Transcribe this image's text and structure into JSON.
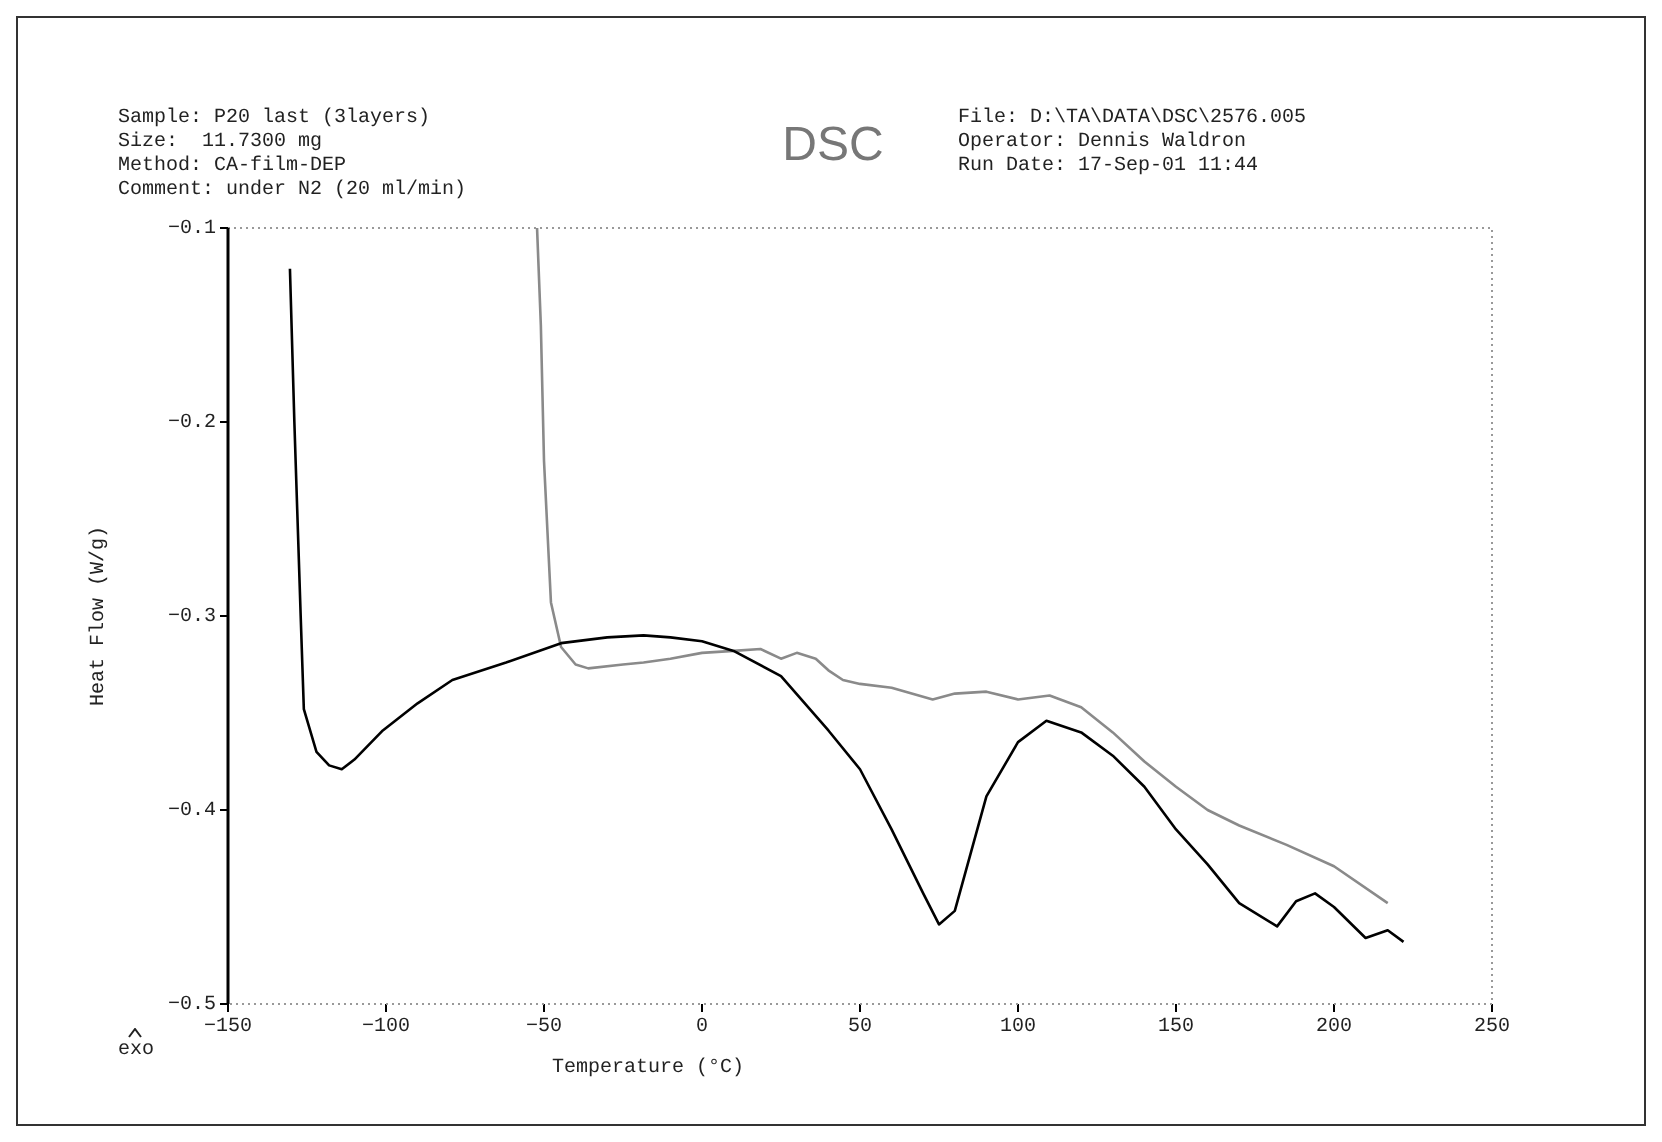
{
  "chart_data": {
    "type": "line",
    "title": "DSC",
    "xlabel": "Temperature (°C)",
    "ylabel": "Heat Flow (W/g)",
    "annotations": [
      "Sample: P20 last (3layers)",
      "Size:  11.7300 mg",
      "Method: CA-film-DEP",
      "Comment: under N2 (20 ml/min)",
      "File: D:\\TA\\DATA\\DSC\\2576.005",
      "Operator: Dennis Waldron",
      "Run Date: 17-Sep-01 11:44",
      "exo"
    ],
    "xlim": [
      -150,
      250
    ],
    "xticks": [
      -150,
      -100,
      -50,
      0,
      50,
      100,
      150,
      200,
      250
    ],
    "ylim": [
      -0.5,
      -0.1
    ],
    "yticks": [
      -0.5,
      -0.4,
      -0.3,
      -0.2,
      -0.1
    ],
    "grid": false,
    "legend": false,
    "marker": "none",
    "line_style": "solid",
    "series": [
      {
        "color": "#000000",
        "x": [
          -130.4,
          -129,
          -127,
          -126,
          -122,
          -118,
          -114,
          -110,
          -101,
          -90,
          -79,
          -62,
          -44.6,
          -30,
          -18.5,
          -10,
          0,
          10,
          25,
          40,
          50,
          60,
          70,
          75,
          80,
          90,
          100,
          109,
          120,
          130,
          140,
          150,
          160,
          170,
          182,
          188,
          194,
          200,
          210,
          217,
          222
        ],
        "values": [
          -0.121,
          -0.2,
          -0.3,
          -0.348,
          -0.37,
          -0.377,
          -0.379,
          -0.374,
          -0.359,
          -0.345,
          -0.333,
          -0.324,
          -0.314,
          -0.311,
          -0.31,
          -0.311,
          -0.313,
          -0.318,
          -0.331,
          -0.359,
          -0.379,
          -0.41,
          -0.443,
          -0.459,
          -0.452,
          -0.393,
          -0.365,
          -0.354,
          -0.36,
          -0.372,
          -0.388,
          -0.41,
          -0.428,
          -0.448,
          -0.46,
          -0.447,
          -0.443,
          -0.45,
          -0.466,
          -0.462,
          -0.468
        ]
      },
      {
        "color": "#8a8a8a",
        "x": [
          -52.2,
          -51,
          -50,
          -48.5,
          -47.8,
          -44.6,
          -40,
          -36,
          -25,
          -18.5,
          -10,
          0,
          10,
          18.5,
          25,
          30,
          36,
          40,
          44.6,
          50,
          60,
          73,
          80,
          90,
          100,
          110,
          120,
          130,
          140,
          150,
          160,
          170,
          185,
          200,
          217
        ],
        "values": [
          -0.1,
          -0.15,
          -0.22,
          -0.27,
          -0.293,
          -0.316,
          -0.325,
          -0.327,
          -0.325,
          -0.324,
          -0.322,
          -0.319,
          -0.318,
          -0.317,
          -0.322,
          -0.319,
          -0.322,
          -0.328,
          -0.333,
          -0.335,
          -0.337,
          -0.343,
          -0.34,
          -0.339,
          -0.343,
          -0.341,
          -0.347,
          -0.36,
          -0.375,
          -0.388,
          -0.4,
          -0.408,
          -0.418,
          -0.429,
          -0.448
        ]
      }
    ]
  }
}
